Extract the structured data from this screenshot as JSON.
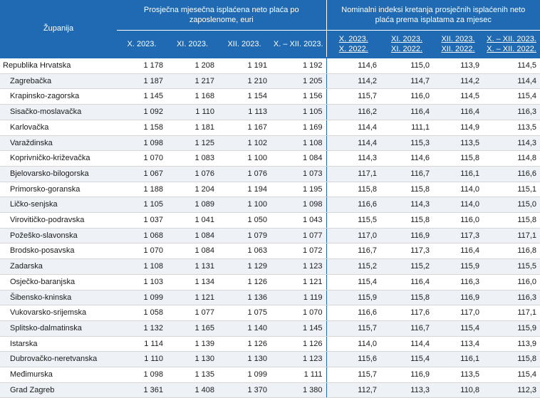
{
  "header": {
    "county_label": "Županija",
    "group_wage": "Prosječna mjesečna isplaćena neto plaća po zaposlenome, euri",
    "group_index": "Nominalni indeksi kretanja prosječnih isplaćenih neto plaća prema isplatama za mjesec",
    "wage_cols": [
      "X. 2023.",
      "XI. 2023.",
      "XII. 2023.",
      "X. – XII. 2023."
    ],
    "index_cols": [
      [
        "X. 2023.",
        "X. 2022."
      ],
      [
        "XI. 2023.",
        "XI. 2022."
      ],
      [
        "XII. 2023.",
        "XII. 2022."
      ],
      [
        "X. – XII. 2023.",
        "X. – XII. 2022."
      ]
    ]
  },
  "rows": [
    {
      "name": "Republika Hrvatska",
      "v": [
        "1 178",
        "1 208",
        "1 191",
        "1 192"
      ],
      "i": [
        "114,6",
        "115,0",
        "113,9",
        "114,5"
      ]
    },
    {
      "name": "Zagrebačka",
      "v": [
        "1 187",
        "1 217",
        "1 210",
        "1 205"
      ],
      "i": [
        "114,2",
        "114,7",
        "114,2",
        "114,4"
      ]
    },
    {
      "name": "Krapinsko-zagorska",
      "v": [
        "1 145",
        "1 168",
        "1 154",
        "1 156"
      ],
      "i": [
        "115,7",
        "116,0",
        "114,5",
        "115,4"
      ]
    },
    {
      "name": "Sisačko-moslavačka",
      "v": [
        "1 092",
        "1 110",
        "1 113",
        "1 105"
      ],
      "i": [
        "116,2",
        "116,4",
        "116,4",
        "116,3"
      ]
    },
    {
      "name": "Karlovačka",
      "v": [
        "1 158",
        "1 181",
        "1 167",
        "1 169"
      ],
      "i": [
        "114,4",
        "111,1",
        "114,9",
        "113,5"
      ]
    },
    {
      "name": "Varaždinska",
      "v": [
        "1 098",
        "1 125",
        "1 102",
        "1 108"
      ],
      "i": [
        "114,4",
        "115,3",
        "113,5",
        "114,3"
      ]
    },
    {
      "name": "Koprivničko-križevačka",
      "v": [
        "1 070",
        "1 083",
        "1 100",
        "1 084"
      ],
      "i": [
        "114,3",
        "114,6",
        "115,8",
        "114,8"
      ]
    },
    {
      "name": "Bjelovarsko-bilogorska",
      "v": [
        "1 067",
        "1 076",
        "1 076",
        "1 073"
      ],
      "i": [
        "117,1",
        "116,7",
        "116,1",
        "116,6"
      ]
    },
    {
      "name": "Primorsko-goranska",
      "v": [
        "1 188",
        "1 204",
        "1 194",
        "1 195"
      ],
      "i": [
        "115,8",
        "115,8",
        "114,0",
        "115,1"
      ]
    },
    {
      "name": "Ličko-senjska",
      "v": [
        "1 105",
        "1 089",
        "1 100",
        "1 098"
      ],
      "i": [
        "116,6",
        "114,3",
        "114,0",
        "115,0"
      ]
    },
    {
      "name": "Virovitičko-podravska",
      "v": [
        "1 037",
        "1 041",
        "1 050",
        "1 043"
      ],
      "i": [
        "115,5",
        "115,8",
        "116,0",
        "115,8"
      ]
    },
    {
      "name": "Požeško-slavonska",
      "v": [
        "1 068",
        "1 084",
        "1 079",
        "1 077"
      ],
      "i": [
        "117,0",
        "116,9",
        "117,3",
        "117,1"
      ]
    },
    {
      "name": "Brodsko-posavska",
      "v": [
        "1 070",
        "1 084",
        "1 063",
        "1 072"
      ],
      "i": [
        "116,7",
        "117,3",
        "116,4",
        "116,8"
      ]
    },
    {
      "name": "Zadarska",
      "v": [
        "1 108",
        "1 131",
        "1 129",
        "1 123"
      ],
      "i": [
        "115,2",
        "115,2",
        "115,9",
        "115,5"
      ]
    },
    {
      "name": "Osječko-baranjska",
      "v": [
        "1 103",
        "1 134",
        "1 126",
        "1 121"
      ],
      "i": [
        "115,4",
        "116,4",
        "116,3",
        "116,0"
      ]
    },
    {
      "name": "Šibensko-kninska",
      "v": [
        "1 099",
        "1 121",
        "1 136",
        "1 119"
      ],
      "i": [
        "115,9",
        "115,8",
        "116,9",
        "116,3"
      ]
    },
    {
      "name": "Vukovarsko-srijemska",
      "v": [
        "1 058",
        "1 077",
        "1 075",
        "1 070"
      ],
      "i": [
        "116,6",
        "117,6",
        "117,0",
        "117,1"
      ]
    },
    {
      "name": "Splitsko-dalmatinska",
      "v": [
        "1 132",
        "1 165",
        "1 140",
        "1 145"
      ],
      "i": [
        "115,7",
        "116,7",
        "115,4",
        "115,9"
      ]
    },
    {
      "name": "Istarska",
      "v": [
        "1 114",
        "1 139",
        "1 126",
        "1 126"
      ],
      "i": [
        "114,0",
        "114,4",
        "113,4",
        "113,9"
      ]
    },
    {
      "name": "Dubrovačko-neretvanska",
      "v": [
        "1 110",
        "1 130",
        "1 130",
        "1 123"
      ],
      "i": [
        "115,6",
        "115,4",
        "116,1",
        "115,8"
      ]
    },
    {
      "name": "Međimurska",
      "v": [
        "1 098",
        "1 135",
        "1 099",
        "1 111"
      ],
      "i": [
        "115,7",
        "116,9",
        "113,5",
        "115,4"
      ]
    },
    {
      "name": "Grad Zagreb",
      "v": [
        "1 361",
        "1 408",
        "1 370",
        "1 380"
      ],
      "i": [
        "112,7",
        "113,3",
        "110,8",
        "112,3"
      ]
    }
  ]
}
